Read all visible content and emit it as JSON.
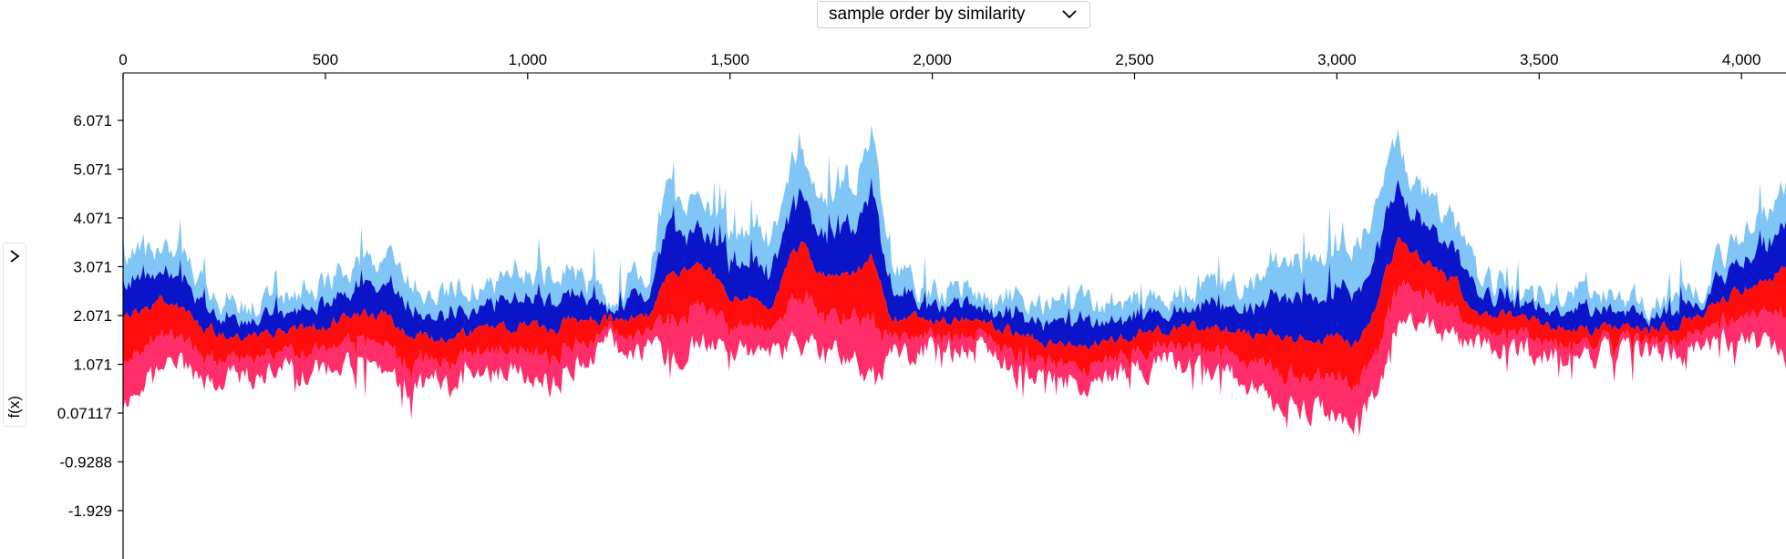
{
  "controls": {
    "sort_selector": {
      "value": "sample order by similarity"
    }
  },
  "chart_data": {
    "type": "area",
    "title": "",
    "xlabel": "",
    "ylabel": "f(x)",
    "xlim": [
      0,
      4110
    ],
    "ylim": [
      -3.0,
      7.2
    ],
    "x_ticks": [
      "0",
      "500",
      "1,000",
      "1,500",
      "2,000",
      "2,500",
      "3,000",
      "3,500",
      "4,000"
    ],
    "x_tick_values": [
      0,
      500,
      1000,
      1500,
      2000,
      2500,
      3000,
      3500,
      4000
    ],
    "y_ticks": [
      "6.071",
      "5.071",
      "4.071",
      "3.071",
      "2.071",
      "1.071",
      "0.07117",
      "-0.9288",
      "-1.929"
    ],
    "y_tick_values": [
      6.071,
      5.071,
      4.071,
      3.071,
      2.071,
      1.071,
      0.07117,
      -0.9288,
      -1.929
    ],
    "grid": false,
    "colors": {
      "positive_light": "#7fc5f5",
      "positive_dark": "#0a14c8",
      "negative_dark": "#ff0d0d",
      "negative_light": "#ff2d6a"
    },
    "series_outline": {
      "x": [
        0,
        50,
        100,
        150,
        200,
        300,
        400,
        500,
        600,
        650,
        700,
        800,
        900,
        1000,
        1050,
        1100,
        1200,
        1300,
        1340,
        1400,
        1450,
        1500,
        1600,
        1650,
        1680,
        1720,
        1800,
        1850,
        1900,
        2000,
        2100,
        2200,
        2300,
        2400,
        2500,
        2600,
        2700,
        2800,
        2850,
        2900,
        2950,
        3000,
        3050,
        3100,
        3150,
        3180,
        3250,
        3300,
        3350,
        3400,
        3500,
        3600,
        3700,
        3800,
        3900,
        4000,
        4050,
        4110
      ],
      "top": [
        3.1,
        3.4,
        3.6,
        3.4,
        2.6,
        2.3,
        2.4,
        2.8,
        3.2,
        3.3,
        2.8,
        2.6,
        2.7,
        3.0,
        2.9,
        2.9,
        2.5,
        3.0,
        4.6,
        4.4,
        4.2,
        3.8,
        3.5,
        5.2,
        5.5,
        4.5,
        4.6,
        5.8,
        3.0,
        2.5,
        2.7,
        2.4,
        2.3,
        2.3,
        2.4,
        2.5,
        2.6,
        2.9,
        3.1,
        3.2,
        3.3,
        3.4,
        3.5,
        4.3,
        5.8,
        4.9,
        4.3,
        3.9,
        2.8,
        2.7,
        2.6,
        2.5,
        2.4,
        2.4,
        2.7,
        3.8,
        4.2,
        4.8
      ],
      "bottom": [
        0.2,
        0.6,
        1.0,
        1.0,
        0.8,
        0.8,
        0.9,
        1.0,
        1.1,
        0.9,
        0.6,
        0.6,
        0.9,
        0.8,
        0.5,
        1.0,
        1.5,
        1.4,
        1.3,
        1.4,
        1.6,
        1.4,
        1.2,
        1.4,
        1.5,
        1.3,
        1.2,
        0.8,
        1.2,
        1.5,
        1.4,
        1.0,
        0.7,
        0.8,
        1.0,
        1.1,
        1.0,
        0.6,
        0.3,
        0.1,
        0.2,
        0.1,
        -0.1,
        0.5,
        1.8,
        2.0,
        1.8,
        1.6,
        1.4,
        1.5,
        1.3,
        1.2,
        1.3,
        1.3,
        1.6,
        1.5,
        1.4,
        1.2
      ],
      "base": [
        2.0,
        2.2,
        2.4,
        2.2,
        1.8,
        1.6,
        1.7,
        1.9,
        2.1,
        2.1,
        1.7,
        1.6,
        1.8,
        1.9,
        1.7,
        2.0,
        2.0,
        2.1,
        2.9,
        3.0,
        3.0,
        2.5,
        2.3,
        3.2,
        3.5,
        2.9,
        2.9,
        3.3,
        2.0,
        2.0,
        2.0,
        1.7,
        1.5,
        1.5,
        1.7,
        1.8,
        1.8,
        1.7,
        1.7,
        1.6,
        1.6,
        1.6,
        1.5,
        2.3,
        3.7,
        3.4,
        3.0,
        2.7,
        2.1,
        2.1,
        1.9,
        1.8,
        1.8,
        1.8,
        2.1,
        2.6,
        2.8,
        3.0
      ]
    }
  }
}
